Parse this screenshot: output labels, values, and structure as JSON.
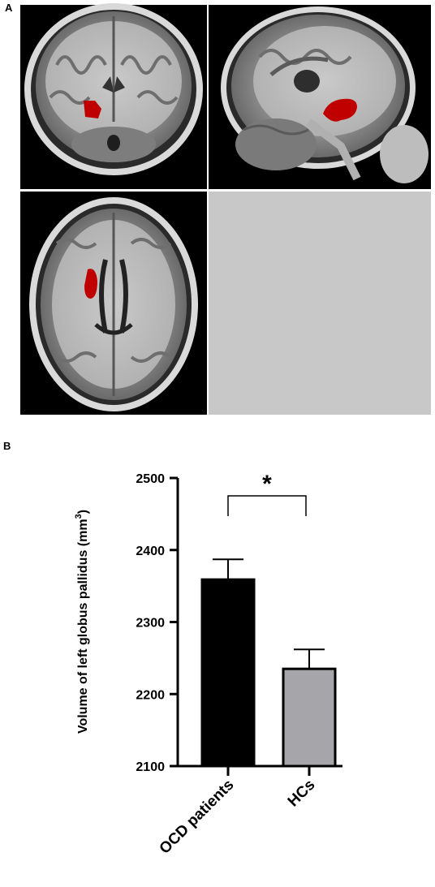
{
  "panel_a": {
    "label": "A",
    "views": [
      "coronal",
      "sagittal",
      "axial"
    ],
    "highlight_color": "#c00000",
    "empty_cell_color": "#c8c8c8"
  },
  "panel_b": {
    "label": "B",
    "significance_marker": "*"
  },
  "chart_data": {
    "type": "bar",
    "categories": [
      "OCD patients",
      "HCs"
    ],
    "values": [
      2359,
      2235
    ],
    "errors": [
      28,
      27
    ],
    "bar_colors": [
      "#000000",
      "#a6a6aa"
    ],
    "ylabel_text": "Volume of left globus pallidus (mm",
    "ylabel_sup": "3",
    "ylabel_close": ")",
    "ylim": [
      2100,
      2500
    ],
    "yticks": [
      "2100",
      "2200",
      "2300",
      "2400",
      "2500"
    ],
    "grid": false
  }
}
